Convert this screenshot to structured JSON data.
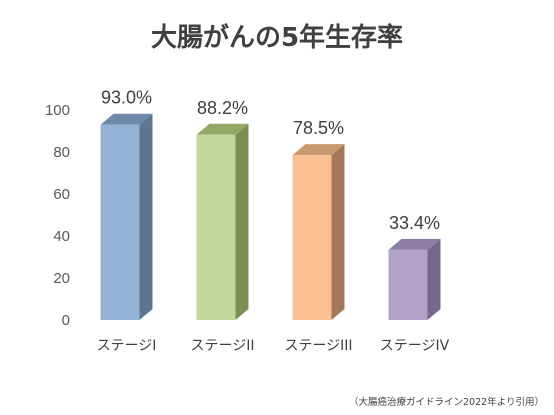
{
  "chart_data": {
    "type": "bar",
    "title": "大腸がんの5年生存率",
    "xlabel": "",
    "ylabel": "",
    "ylim": [
      0,
      100
    ],
    "yticks": [
      0,
      20,
      40,
      60,
      80,
      100
    ],
    "ytick_labels": [
      "0",
      "20",
      "40",
      "60",
      "80",
      "100"
    ],
    "categories": [
      "ステージI",
      "ステージII",
      "ステージIII",
      "ステージIV"
    ],
    "values": [
      93.0,
      88.2,
      78.5,
      33.4
    ],
    "data_labels": [
      "93.0%",
      "88.2%",
      "78.5%",
      "33.4%"
    ],
    "colors": [
      {
        "face": "#95B3D7",
        "side": "#5E7493",
        "top": "#6F89AB"
      },
      {
        "face": "#C3D69B",
        "side": "#7D8F55",
        "top": "#93A766"
      },
      {
        "face": "#FAC090",
        "side": "#A5785A",
        "top": "#C99A70"
      },
      {
        "face": "#B3A2C7",
        "side": "#76688A",
        "top": "#8C7DA2"
      }
    ],
    "grid": false,
    "legend": "none",
    "style": "3d-column"
  },
  "source_note": "（大腸癌治療ガイドライン2022年より引用）"
}
